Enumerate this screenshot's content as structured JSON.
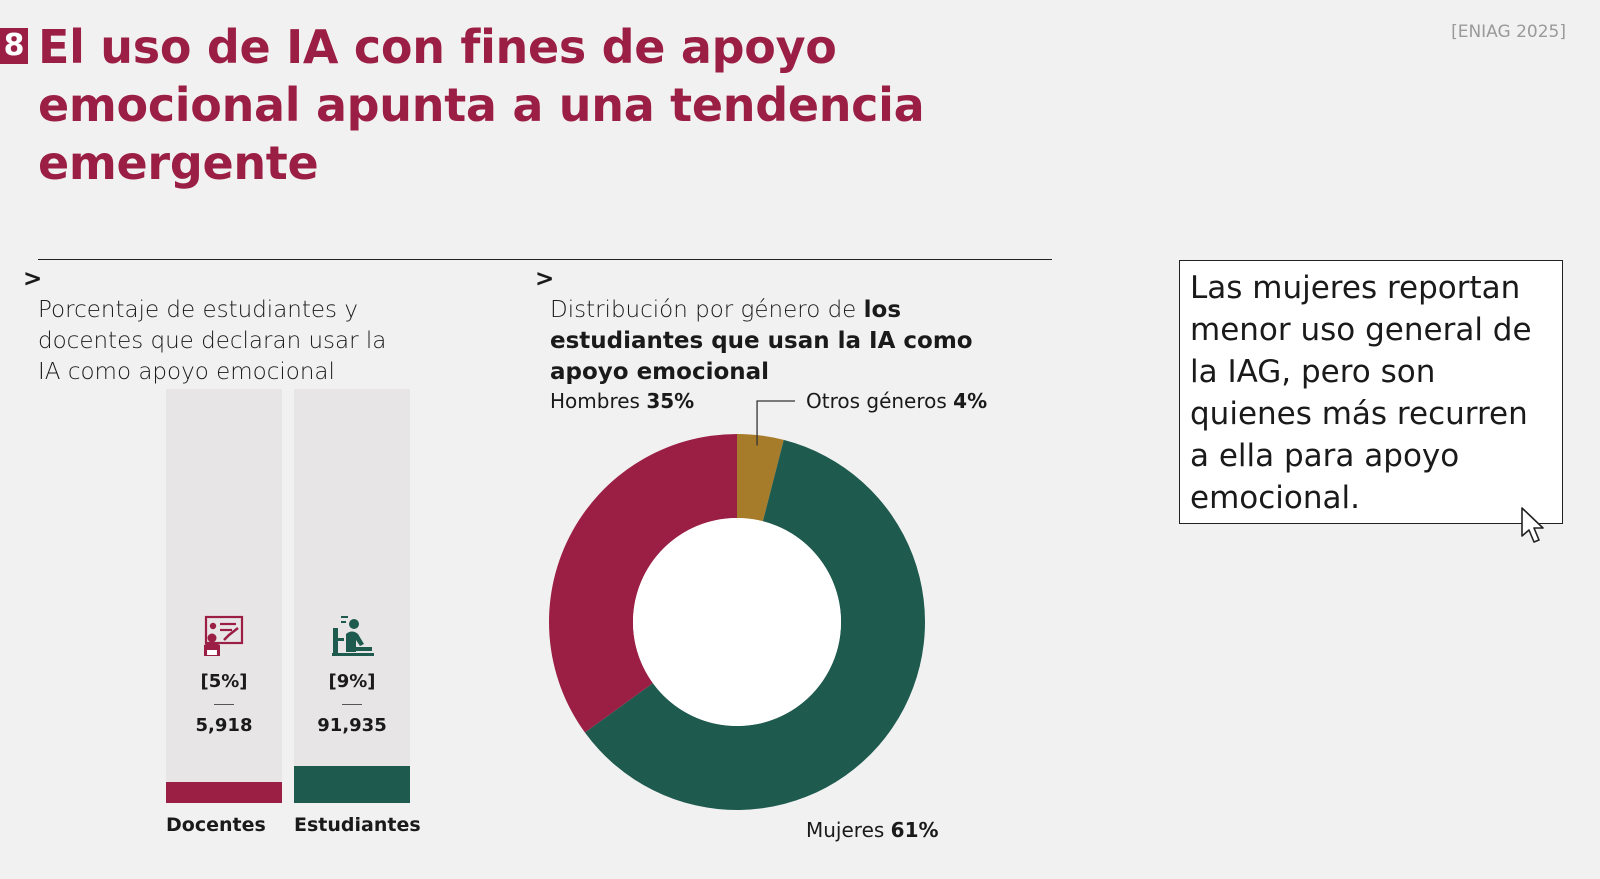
{
  "slide_number": "8",
  "title": "El uso de IA con fines de apoyo\nemocional apunta a una tendencia\nemergente",
  "source": "[ENIAG 2025]",
  "left_chart": {
    "chevron": ">",
    "subtitle": "Porcentaje de estudiantes y\ndocentes que declaran usar la\nIA como apoyo emocional"
  },
  "right_chart": {
    "chevron": ">",
    "subtitle_normal": "Distribución por género de ",
    "subtitle_bold": "los\nestudiantes que usan la IA como\napoyo emocional"
  },
  "callout": {
    "text": "Las mujeres reportan menor uso general de la IAG, pero son quienes más recurren a ella para apoyo emocional."
  },
  "icons": {
    "docentes": "teacher-icon",
    "estudiantes": "student-icon",
    "cursor": "mouse-cursor-icon"
  },
  "colors": {
    "title": "#9b1f45",
    "docentes": "#9b1f45",
    "estudiantes": "#1e5a4e",
    "hombres": "#9b1f45",
    "mujeres": "#1e5a4e",
    "otros": "#a67c2a",
    "bar_background": "#e7e5e5"
  },
  "chart_data": [
    {
      "type": "bar",
      "categories": [
        "Docentes",
        "Estudiantes"
      ],
      "values": [
        5,
        9
      ],
      "value_labels": [
        "[5%]",
        "[9%]"
      ],
      "counts": [
        "5,918",
        "91,935"
      ],
      "ylim": [
        0,
        100
      ],
      "grid": false
    },
    {
      "type": "pie",
      "donut": true,
      "labels": [
        "Otros géneros",
        "Mujeres",
        "Hombres"
      ],
      "values": [
        4,
        61,
        35
      ],
      "value_labels": [
        "4%",
        "61%",
        "35%"
      ]
    }
  ]
}
